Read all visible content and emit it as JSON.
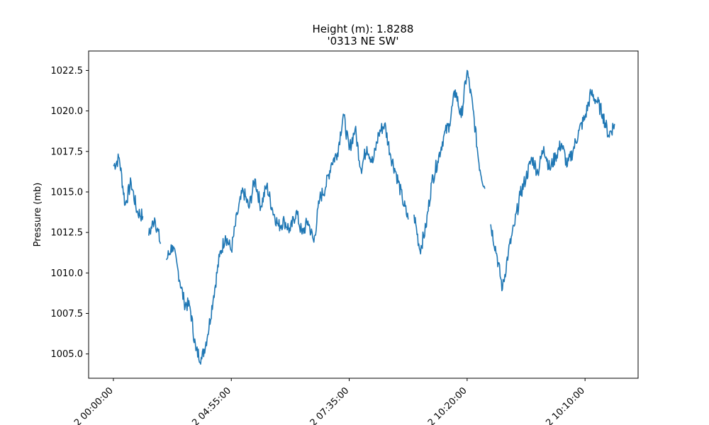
{
  "chart_data": {
    "type": "line",
    "title_line1": "Height (m): 1.8288",
    "title_line2": "'0313 NE  SW'",
    "xlabel": "",
    "ylabel": "Pressure (mb)",
    "ylim": [
      1003.5,
      1023.7
    ],
    "y_ticks": [
      1005.0,
      1007.5,
      1010.0,
      1012.5,
      1015.0,
      1017.5,
      1020.0,
      1022.5
    ],
    "y_tick_labels": [
      "1005.0",
      "1007.5",
      "1010.0",
      "1012.5",
      "1015.0",
      "1017.5",
      "1020.0",
      "1022.5"
    ],
    "x_tick_labels": [
      "2 00:00:00",
      "2 04:55:00",
      "2 07:35:00",
      "2 10:20:00",
      "2 10:10:00"
    ],
    "grid": false,
    "series_color": "#1f77b4",
    "x_range": [
      -0.21,
      4.45
    ],
    "x": [
      0.0,
      0.05,
      0.1,
      0.15,
      0.2,
      0.25,
      0.3,
      0.35,
      0.4,
      0.45,
      0.5,
      0.55,
      0.6,
      0.65,
      0.7,
      0.75,
      0.8,
      0.85,
      0.9,
      0.95,
      1.0,
      1.05,
      1.1,
      1.15,
      1.2,
      1.25,
      1.3,
      1.35,
      1.4,
      1.45,
      1.5,
      1.55,
      1.6,
      1.65,
      1.7,
      1.75,
      1.8,
      1.85,
      1.9,
      1.95,
      2.0,
      2.05,
      2.1,
      2.15,
      2.2,
      2.25,
      2.3,
      2.35,
      2.4,
      2.45,
      2.5,
      2.55,
      2.6,
      2.65,
      2.7,
      2.75,
      2.8,
      2.85,
      2.9,
      2.95,
      3.0,
      3.05,
      3.1,
      3.15,
      3.2,
      3.25,
      3.3,
      3.35,
      3.4,
      3.45,
      3.5,
      3.55,
      3.6,
      3.65,
      3.7,
      3.75,
      3.8,
      3.85,
      3.9,
      3.95,
      4.0,
      4.05,
      4.1,
      4.15,
      4.2,
      4.25
    ],
    "values": [
      1016.6,
      1017.1,
      1014.2,
      1015.6,
      1013.8,
      1013.5,
      1012.3,
      1013.4,
      1011.8,
      1010.8,
      1011.7,
      1010.1,
      1008.2,
      1007.9,
      1005.2,
      1004.7,
      1006.2,
      1008.6,
      1011.0,
      1012.3,
      1011.4,
      1013.6,
      1015.1,
      1014.0,
      1015.8,
      1014.1,
      1015.4,
      1013.9,
      1012.9,
      1013.2,
      1012.6,
      1013.8,
      1012.4,
      1013.2,
      1011.9,
      1014.6,
      1015.3,
      1016.8,
      1017.4,
      1019.8,
      1017.6,
      1018.9,
      1016.4,
      1017.8,
      1016.8,
      1018.6,
      1019.2,
      1017.3,
      1016.1,
      1014.6,
      1013.3,
      1013.6,
      1011.4,
      1012.8,
      1015.6,
      1016.9,
      1018.4,
      1019.2,
      1021.3,
      1019.6,
      1022.5,
      1020.1,
      1016.8,
      1015.2,
      1013.0,
      1011.2,
      1009.0,
      1011.3,
      1012.9,
      1014.8,
      1015.9,
      1017.1,
      1016.2,
      1017.8,
      1016.4,
      1017.2,
      1018.0,
      1016.6,
      1017.6,
      1018.8,
      1019.6,
      1021.1,
      1020.6,
      1019.8,
      1018.5,
      1019.2
    ],
    "gaps_after": [
      5,
      8,
      50,
      63
    ]
  }
}
